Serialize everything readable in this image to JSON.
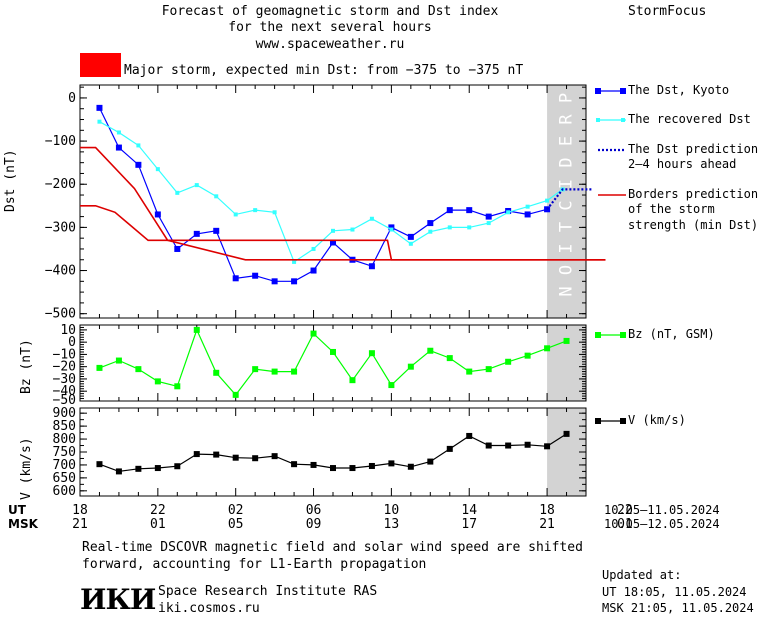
{
  "header": {
    "title_line1": "Forecast of geomagnetic storm and Dst index",
    "title_line2": "for the next several hours",
    "title_line3": "www.spaceweather.ru",
    "brand": "StormFocus",
    "storm_color": "#ff0000",
    "storm_text": "Major storm, expected min Dst: from −375 to −375 nT"
  },
  "prediction_label": "PREDICTION",
  "colors": {
    "dst_kyoto": "#0000ff",
    "dst_recovered": "#33ffff",
    "dst_prediction": "#0000cc",
    "borders": "#dd0000",
    "bz": "#00ff00",
    "v": "#000000",
    "prediction_band": "#d3d3d3"
  },
  "chart_data": [
    {
      "type": "line",
      "ylabel": "Dst (nT)",
      "ylim": [
        -510,
        30
      ],
      "yticks": [
        0,
        -100,
        -200,
        -300,
        -400,
        -500
      ],
      "xlim": [
        18,
        44
      ],
      "series": [
        {
          "name": "The Dst, Kyoto",
          "x": [
            19,
            20,
            21,
            22,
            23,
            24,
            25,
            26,
            27,
            28,
            29,
            30,
            31,
            32,
            33,
            34,
            35,
            36,
            37,
            38,
            39,
            40,
            41,
            42
          ],
          "y": [
            -23,
            -115,
            -155,
            -270,
            -350,
            -315,
            -308,
            -418,
            -412,
            -425,
            -425,
            -400,
            -335,
            -375,
            -390,
            -300,
            -322,
            -290,
            -260,
            -260,
            -275,
            -262,
            -270,
            -258
          ]
        },
        {
          "name": "The recovered Dst",
          "x": [
            19,
            20,
            21,
            22,
            23,
            24,
            25,
            26,
            27,
            28,
            29,
            30,
            31,
            32,
            33,
            34,
            35,
            36,
            37,
            38,
            39,
            40,
            41,
            42,
            42.8
          ],
          "y": [
            -55,
            -80,
            -110,
            -165,
            -220,
            -202,
            -228,
            -270,
            -260,
            -265,
            -380,
            -350,
            -308,
            -305,
            -280,
            -305,
            -338,
            -310,
            -300,
            -300,
            -290,
            -265,
            -252,
            -238,
            -212
          ]
        },
        {
          "name": "The Dst prediction 2–4 hours ahead",
          "x": [
            42,
            42.8,
            43.5,
            44.3
          ],
          "y": [
            -258,
            -212,
            -212,
            -212
          ]
        },
        {
          "name": "Borders prediction of the storm strength (min Dst)",
          "x": [
            18,
            18.8,
            19.8,
            21.5,
            22.5,
            26.5,
            27.4,
            33.8,
            34,
            45
          ],
          "y": [
            -250,
            -250,
            -265,
            -330,
            -330,
            -330,
            -330,
            -330,
            -375,
            -375
          ]
        },
        {
          "name": "",
          "x": [
            18,
            18.8,
            20.8,
            22.5,
            26.5,
            45
          ],
          "y": [
            -115,
            -115,
            -210,
            -330,
            -375,
            -375
          ]
        }
      ]
    },
    {
      "type": "line",
      "ylabel": "Bz (nT)",
      "ylim": [
        -48,
        14
      ],
      "yticks": [
        10,
        0,
        -10,
        -20,
        -30,
        -40
      ],
      "extra_ticks": [
        "-50"
      ],
      "xlim": [
        18,
        44
      ],
      "series": [
        {
          "name": "Bz (nT, GSM)",
          "x": [
            19,
            20,
            21,
            22,
            23,
            24,
            25,
            26,
            27,
            28,
            29,
            30,
            31,
            32,
            33,
            34,
            35,
            36,
            37,
            38,
            39,
            40,
            41,
            42,
            43
          ],
          "y": [
            -21,
            -15,
            -22,
            -32,
            -36,
            10,
            -25,
            -43,
            -22,
            -24,
            -24,
            7,
            -8,
            -31,
            -9,
            -35,
            -20,
            -7,
            -13,
            -24,
            -22,
            -16,
            -11,
            -5,
            1
          ]
        }
      ]
    },
    {
      "type": "line",
      "ylabel": "V (km/s)",
      "ylim": [
        580,
        920
      ],
      "yticks": [
        900,
        850,
        800,
        750,
        700,
        650,
        600
      ],
      "xlim": [
        18,
        44
      ],
      "series": [
        {
          "name": "V (km/s)",
          "x": [
            19,
            20,
            21,
            22,
            23,
            24,
            25,
            26,
            27,
            28,
            29,
            30,
            31,
            32,
            33,
            34,
            35,
            36,
            37,
            38,
            39,
            40,
            41,
            42,
            43
          ],
          "y": [
            703,
            675,
            685,
            688,
            695,
            742,
            740,
            728,
            726,
            734,
            703,
            700,
            688,
            688,
            696,
            706,
            693,
            713,
            762,
            812,
            775,
            775,
            778,
            772,
            820
          ]
        }
      ]
    }
  ],
  "x_axis": {
    "ut_label": "UT",
    "msk_label": "MSK",
    "ut_ticks": [
      "18",
      "22",
      "02",
      "06",
      "10",
      "14",
      "18",
      "22"
    ],
    "msk_ticks": [
      "21",
      "01",
      "05",
      "09",
      "13",
      "17",
      "21",
      "01"
    ],
    "ut_dates": "10.05–11.05.2024",
    "msk_dates": "10.05–12.05.2024"
  },
  "legend": {
    "dst_kyoto": "The Dst, Kyoto",
    "dst_recovered": "The recovered Dst",
    "dst_prediction_1": "The Dst prediction",
    "dst_prediction_2": "2–4 hours ahead",
    "borders_1": "Borders prediction",
    "borders_2": "of the storm",
    "borders_3": "strength (min Dst)",
    "bz": "Bz (nT, GSM)",
    "v": "V (km/s)"
  },
  "footer": {
    "note_line1": "Real-time DSCOVR magnetic field and solar wind speed are shifted",
    "note_line2": "forward, accounting for L1-Earth propagation",
    "logo_text": "ИКИ",
    "institute": "Space Research Institute RAS",
    "site": "iki.cosmos.ru",
    "updated_label": "Updated at:",
    "updated_ut": "UT   18:05, 11.05.2024",
    "updated_msk": "MSK 21:05, 11.05.2024"
  }
}
